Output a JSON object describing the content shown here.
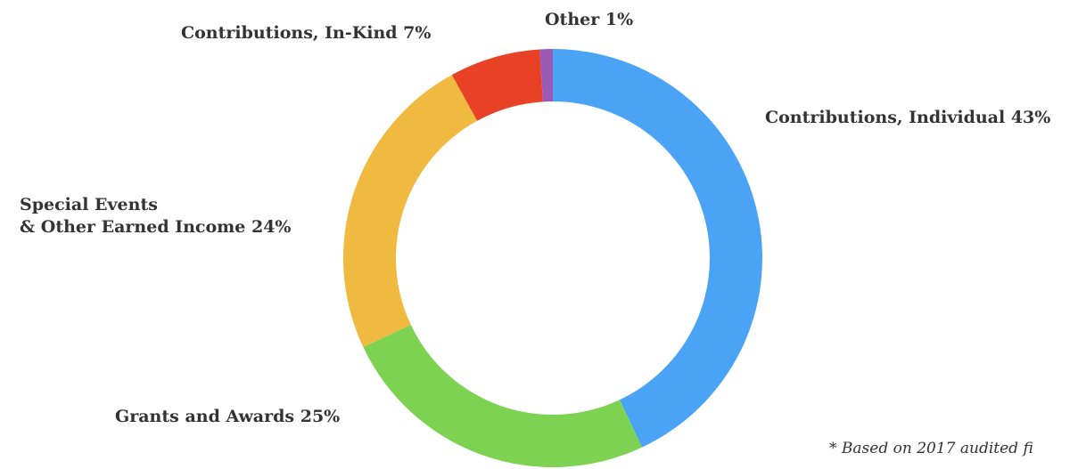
{
  "chart_data": {
    "type": "pie",
    "style": "donut",
    "title": "",
    "slices": [
      {
        "label_lines": [
          "Contributions, Individual 43%"
        ],
        "value": 43,
        "color": "#4aa3f5"
      },
      {
        "label_lines": [
          "Grants and Awards 25%"
        ],
        "value": 25,
        "color": "#7ed252"
      },
      {
        "label_lines": [
          "Special Events",
          "& Other Earned Income 24%"
        ],
        "value": 24,
        "color": "#f0b940"
      },
      {
        "label_lines": [
          "Contributions, In-Kind 7%"
        ],
        "value": 7,
        "color": "#e84126"
      },
      {
        "label_lines": [
          "Other 1%"
        ],
        "value": 1,
        "color": "#9b59b6"
      }
    ],
    "legend": "none",
    "footnote": "* Based on 2017 audited fi"
  }
}
